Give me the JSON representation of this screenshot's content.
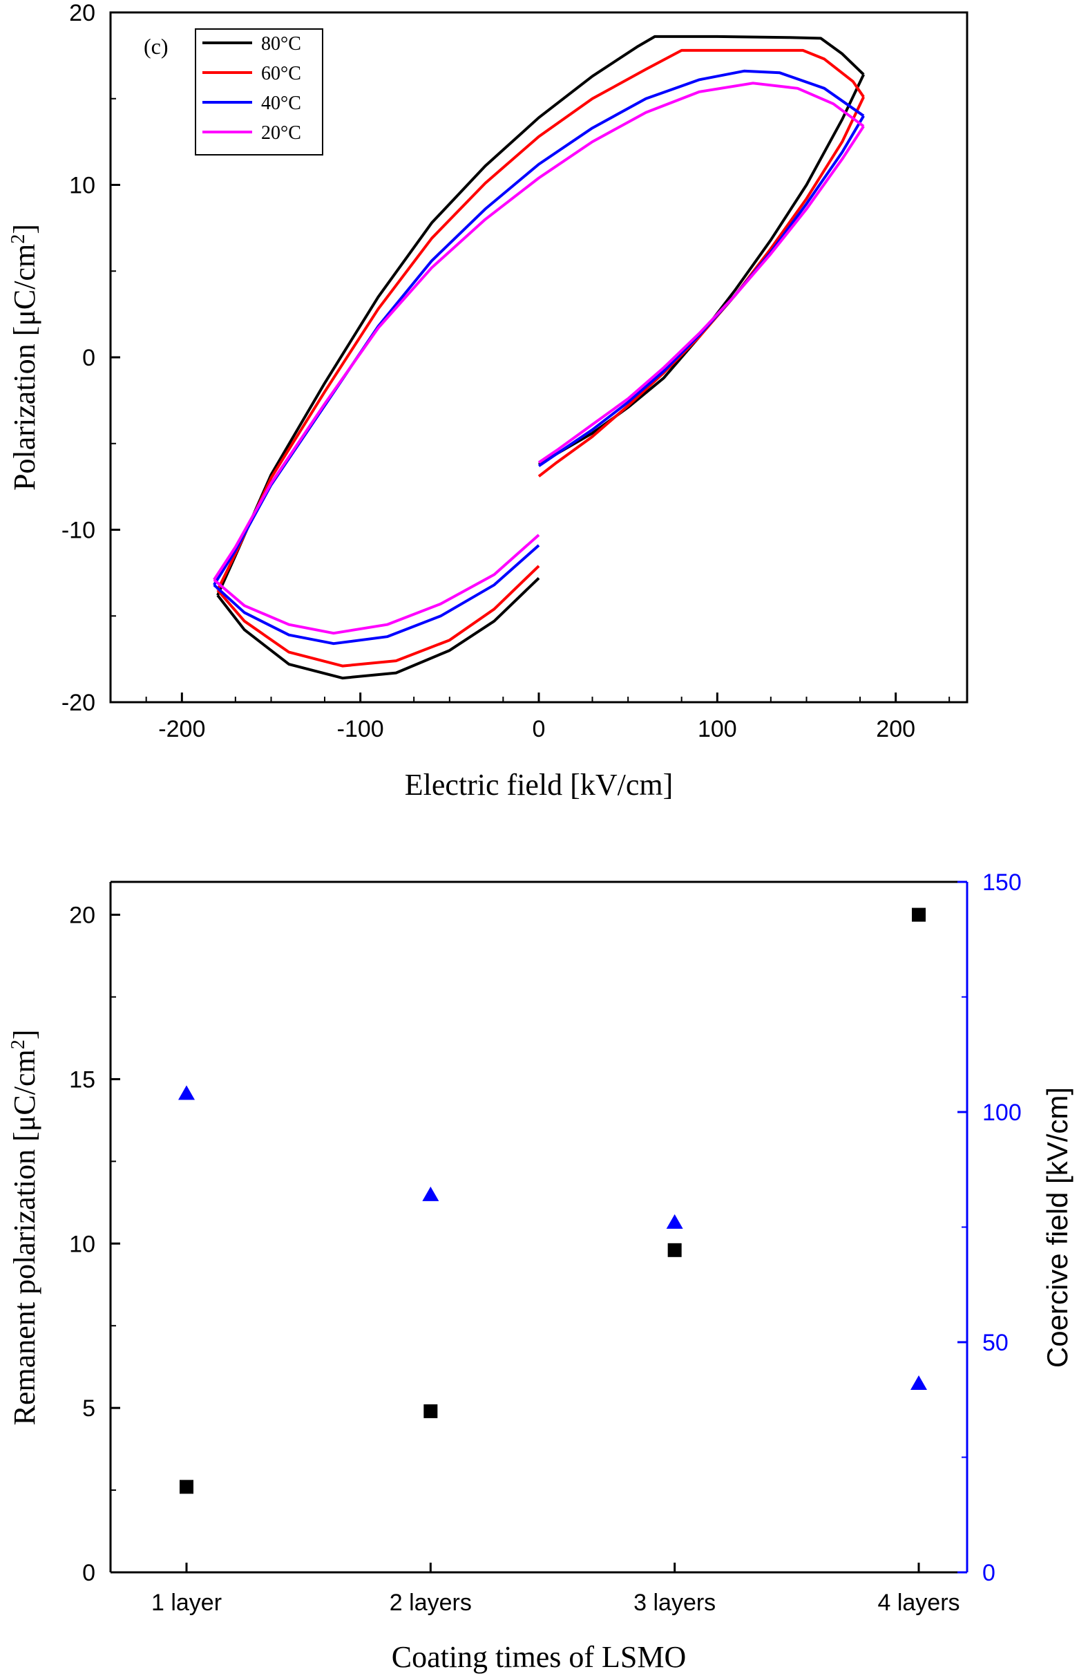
{
  "chart_data": [
    {
      "type": "line",
      "panel_label": "(c)",
      "xlabel": "Electric field [kV/cm]",
      "ylabel_main": "Polarization [μC/cm",
      "ylabel_sup": "2",
      "ylabel_end": "]",
      "xlim": [
        -240,
        240
      ],
      "ylim": [
        -20,
        20
      ],
      "xticks": [
        -200,
        -100,
        0,
        100,
        200
      ],
      "yticks": [
        -20,
        -10,
        0,
        10,
        20
      ],
      "legend": "top-left",
      "series": [
        {
          "name": "80°C",
          "color": "#000000",
          "upper": [
            [
              -180,
              -13.8
            ],
            [
              -170,
              -11.5
            ],
            [
              -150,
              -6.8
            ],
            [
              -120,
              -1.5
            ],
            [
              -90,
              3.5
            ],
            [
              -60,
              7.8
            ],
            [
              -30,
              11.1
            ],
            [
              0,
              13.9
            ],
            [
              30,
              16.3
            ],
            [
              55,
              18.0
            ],
            [
              65,
              18.6
            ],
            [
              100,
              18.6
            ],
            [
              140,
              18.55
            ],
            [
              158,
              18.5
            ],
            [
              170,
              17.6
            ],
            [
              182,
              16.4
            ]
          ],
          "lower": [
            [
              182,
              16.4
            ],
            [
              170,
              13.8
            ],
            [
              150,
              10.0
            ],
            [
              130,
              6.8
            ],
            [
              110,
              3.9
            ],
            [
              90,
              1.2
            ],
            [
              70,
              -1.2
            ],
            [
              50,
              -2.9
            ],
            [
              30,
              -4.4
            ],
            [
              10,
              -5.6
            ],
            [
              0,
              -6.2
            ]
          ],
          "neg": [
            [
              -180,
              -13.8
            ],
            [
              -165,
              -15.8
            ],
            [
              -140,
              -17.8
            ],
            [
              -110,
              -18.6
            ],
            [
              -80,
              -18.3
            ],
            [
              -50,
              -17.0
            ],
            [
              -25,
              -15.3
            ],
            [
              0,
              -12.8
            ]
          ]
        },
        {
          "name": "60°C",
          "color": "#ff0000",
          "upper": [
            [
              -180,
              -13.5
            ],
            [
              -170,
              -11.4
            ],
            [
              -150,
              -7.0
            ],
            [
              -120,
              -2.0
            ],
            [
              -90,
              2.8
            ],
            [
              -60,
              6.9
            ],
            [
              -30,
              10.1
            ],
            [
              0,
              12.8
            ],
            [
              30,
              15.0
            ],
            [
              60,
              16.7
            ],
            [
              80,
              17.8
            ],
            [
              110,
              17.8
            ],
            [
              148,
              17.8
            ],
            [
              160,
              17.3
            ],
            [
              176,
              16.0
            ],
            [
              182,
              15.1
            ]
          ],
          "lower": [
            [
              182,
              15.1
            ],
            [
              170,
              12.5
            ],
            [
              150,
              9.2
            ],
            [
              130,
              6.3
            ],
            [
              110,
              3.6
            ],
            [
              90,
              1.2
            ],
            [
              70,
              -0.9
            ],
            [
              50,
              -2.8
            ],
            [
              30,
              -4.6
            ],
            [
              10,
              -6.1
            ],
            [
              0,
              -6.9
            ]
          ],
          "neg": [
            [
              -180,
              -13.5
            ],
            [
              -165,
              -15.3
            ],
            [
              -140,
              -17.1
            ],
            [
              -110,
              -17.9
            ],
            [
              -80,
              -17.6
            ],
            [
              -50,
              -16.4
            ],
            [
              -25,
              -14.6
            ],
            [
              0,
              -12.1
            ]
          ]
        },
        {
          "name": "40°C",
          "color": "#0000ff",
          "upper": [
            [
              -182,
              -13.2
            ],
            [
              -170,
              -11.2
            ],
            [
              -150,
              -7.4
            ],
            [
              -120,
              -2.8
            ],
            [
              -90,
              1.8
            ],
            [
              -60,
              5.6
            ],
            [
              -30,
              8.6
            ],
            [
              0,
              11.2
            ],
            [
              30,
              13.3
            ],
            [
              60,
              15.0
            ],
            [
              90,
              16.1
            ],
            [
              115,
              16.6
            ],
            [
              135,
              16.5
            ],
            [
              160,
              15.6
            ],
            [
              182,
              14.0
            ]
          ],
          "lower": [
            [
              182,
              14.0
            ],
            [
              170,
              11.9
            ],
            [
              150,
              8.9
            ],
            [
              130,
              6.1
            ],
            [
              110,
              3.6
            ],
            [
              90,
              1.3
            ],
            [
              70,
              -0.8
            ],
            [
              50,
              -2.6
            ],
            [
              30,
              -4.2
            ],
            [
              10,
              -5.6
            ],
            [
              0,
              -6.3
            ]
          ],
          "neg": [
            [
              -182,
              -13.2
            ],
            [
              -165,
              -14.8
            ],
            [
              -140,
              -16.1
            ],
            [
              -115,
              -16.6
            ],
            [
              -85,
              -16.2
            ],
            [
              -55,
              -15.0
            ],
            [
              -25,
              -13.2
            ],
            [
              0,
              -10.9
            ]
          ]
        },
        {
          "name": "20°C",
          "color": "#ff00ff",
          "upper": [
            [
              -182,
              -12.9
            ],
            [
              -170,
              -11.0
            ],
            [
              -150,
              -7.3
            ],
            [
              -120,
              -2.7
            ],
            [
              -90,
              1.7
            ],
            [
              -60,
              5.2
            ],
            [
              -30,
              8.0
            ],
            [
              0,
              10.4
            ],
            [
              30,
              12.5
            ],
            [
              60,
              14.2
            ],
            [
              90,
              15.4
            ],
            [
              120,
              15.9
            ],
            [
              145,
              15.6
            ],
            [
              165,
              14.7
            ],
            [
              182,
              13.4
            ]
          ],
          "lower": [
            [
              182,
              13.4
            ],
            [
              170,
              11.5
            ],
            [
              150,
              8.6
            ],
            [
              130,
              6.0
            ],
            [
              110,
              3.6
            ],
            [
              90,
              1.4
            ],
            [
              70,
              -0.6
            ],
            [
              50,
              -2.4
            ],
            [
              30,
              -3.9
            ],
            [
              10,
              -5.4
            ],
            [
              0,
              -6.1
            ]
          ],
          "neg": [
            [
              -182,
              -12.9
            ],
            [
              -165,
              -14.4
            ],
            [
              -140,
              -15.5
            ],
            [
              -115,
              -16.0
            ],
            [
              -85,
              -15.5
            ],
            [
              -55,
              -14.3
            ],
            [
              -25,
              -12.6
            ],
            [
              0,
              -10.3
            ]
          ]
        }
      ]
    },
    {
      "type": "scatter",
      "categories": [
        "1 layer",
        "2 layers",
        "3 layers",
        "4 layers"
      ],
      "xlabel": "Coating times of LSMO",
      "ylabel_left_main": "Remanent polarization [μC/cm",
      "ylabel_left_sup": "2",
      "ylabel_left_end": "]",
      "ylabel_right": "Coercive field [kV/cm]",
      "ylim_left": [
        0,
        21
      ],
      "ylim_right": [
        0,
        150
      ],
      "yticks_left": [
        0,
        5,
        10,
        15,
        20
      ],
      "yticks_right": [
        0,
        50,
        100,
        150
      ],
      "right_axis_color": "#0000ff",
      "series": [
        {
          "axis": "left",
          "marker": "square",
          "color": "#000000",
          "values": [
            2.6,
            4.9,
            9.8,
            20.0
          ]
        },
        {
          "axis": "right",
          "marker": "triangle",
          "color": "#0000ff",
          "values": [
            104,
            82,
            76,
            41
          ]
        }
      ]
    }
  ]
}
